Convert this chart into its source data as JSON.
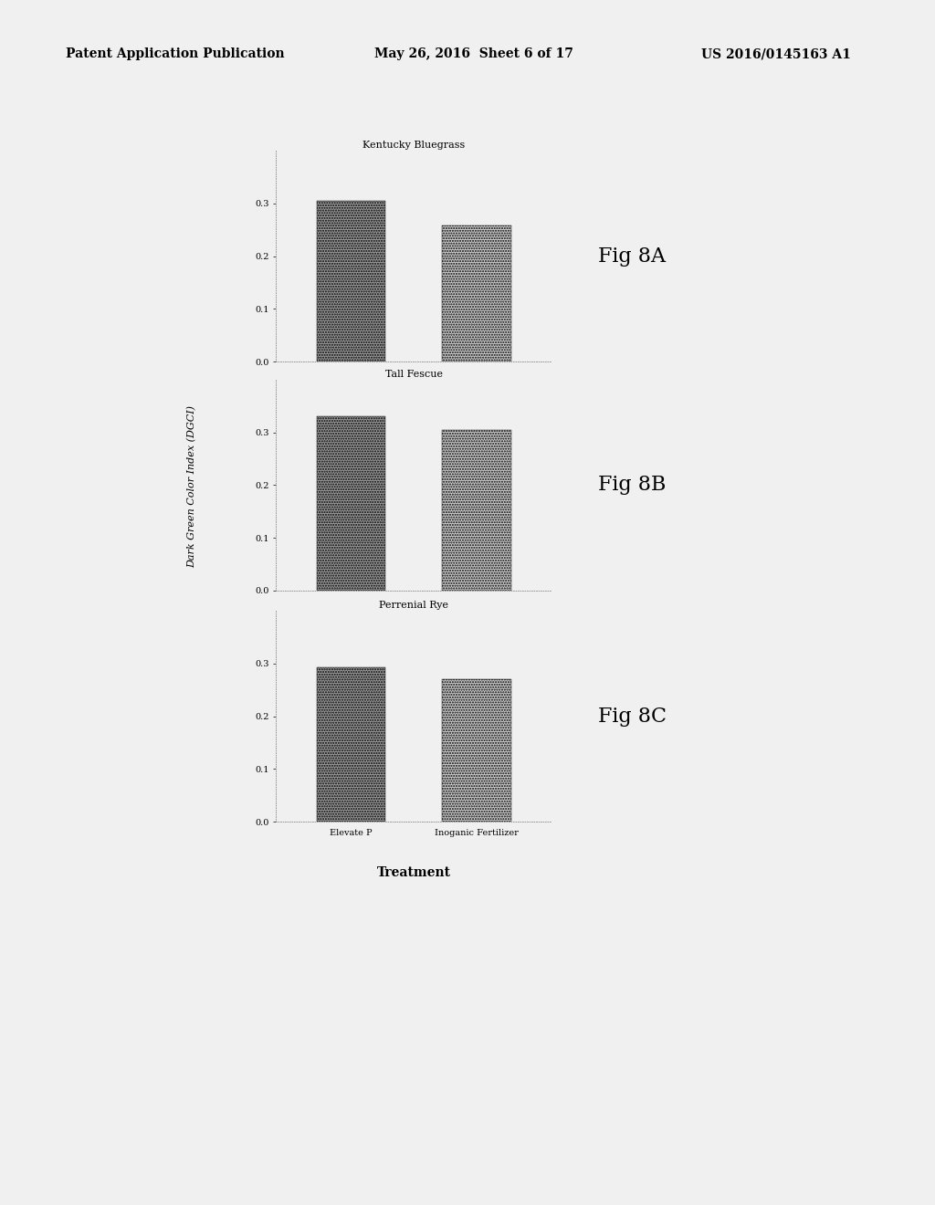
{
  "header_left": "Patent Application Publication",
  "header_mid": "May 26, 2016  Sheet 6 of 17",
  "header_right": "US 2016/0145163 A1",
  "figures": [
    {
      "title": "Kentucky Bluegrass",
      "fig_label": "Fig 8A",
      "elevate_p": 0.305,
      "inorganic": 0.258
    },
    {
      "title": "Tall Fescue",
      "fig_label": "Fig 8B",
      "elevate_p": 0.33,
      "inorganic": 0.305
    },
    {
      "title": "Perrenial Rye",
      "fig_label": "Fig 8C",
      "elevate_p": 0.293,
      "inorganic": 0.27
    }
  ],
  "ylabel": "Dark Green Color Index (DGCI)",
  "xlabel": "Treatment",
  "categories": [
    "Elevate P",
    "Inoganic Fertilizer"
  ],
  "ylim": [
    0.0,
    0.4
  ],
  "yticks": [
    0.0,
    0.1,
    0.2,
    0.3
  ],
  "dark_bar_color": "#999999",
  "light_bar_color": "#cccccc",
  "bg_color": "#f0f0f0",
  "page_bg": "#f0f0f0",
  "title_fontsize": 8,
  "tick_fontsize": 7,
  "label_fontsize": 8,
  "fig_label_fontsize": 16,
  "header_fontsize": 10,
  "xlabel_fontsize": 10
}
